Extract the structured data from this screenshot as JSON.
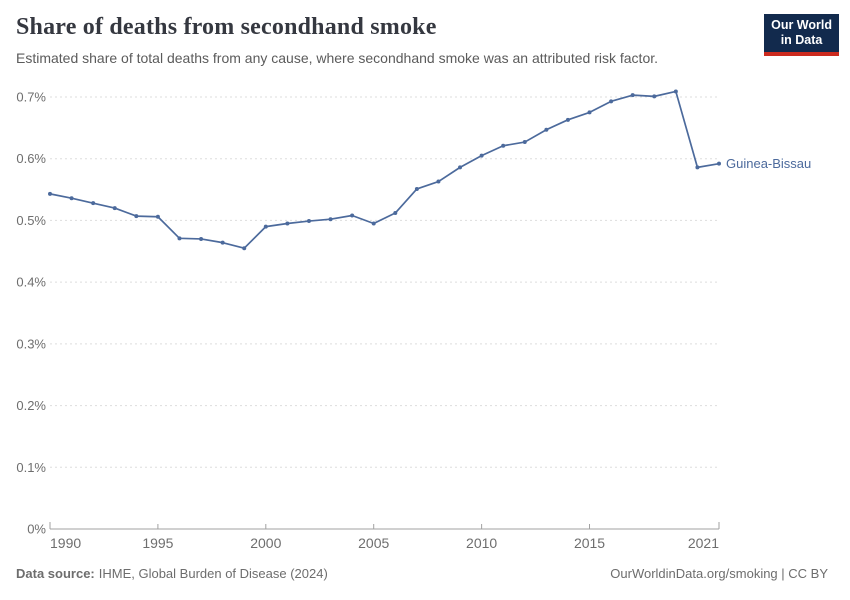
{
  "header": {
    "title": "Share of deaths from secondhand smoke",
    "subtitle": "Estimated share of total deaths from any cause, where secondhand smoke was an attributed risk factor.",
    "logo_line1": "Our World",
    "logo_line2": "in Data"
  },
  "chart_data": {
    "type": "line",
    "title": "Share of deaths from secondhand smoke",
    "xlabel": "",
    "ylabel": "",
    "xlim": [
      1990,
      2021
    ],
    "ylim": [
      0,
      0.7
    ],
    "grid": "horizontal-dashed",
    "legend_position": "end-of-line-label",
    "y_tick_format": "percent",
    "x": [
      1990,
      1991,
      1992,
      1993,
      1994,
      1995,
      1996,
      1997,
      1998,
      1999,
      2000,
      2001,
      2002,
      2003,
      2004,
      2005,
      2006,
      2007,
      2008,
      2009,
      2010,
      2011,
      2012,
      2013,
      2014,
      2015,
      2016,
      2017,
      2018,
      2019,
      2020,
      2021
    ],
    "series": [
      {
        "name": "Guinea-Bissau",
        "color": "#4c6a9c",
        "values": [
          0.543,
          0.536,
          0.528,
          0.52,
          0.507,
          0.506,
          0.471,
          0.47,
          0.464,
          0.455,
          0.49,
          0.495,
          0.499,
          0.502,
          0.508,
          0.495,
          0.512,
          0.551,
          0.563,
          0.586,
          0.605,
          0.621,
          0.627,
          0.647,
          0.663,
          0.675,
          0.693,
          0.703,
          0.701,
          0.709,
          0.586,
          0.592
        ]
      }
    ],
    "x_ticks": [
      {
        "value": 1990,
        "label": "1990",
        "align": "start",
        "edge": true
      },
      {
        "value": 1995,
        "label": "1995",
        "align": "middle",
        "edge": false
      },
      {
        "value": 2000,
        "label": "2000",
        "align": "middle",
        "edge": false
      },
      {
        "value": 2005,
        "label": "2005",
        "align": "middle",
        "edge": false
      },
      {
        "value": 2010,
        "label": "2010",
        "align": "middle",
        "edge": false
      },
      {
        "value": 2015,
        "label": "2015",
        "align": "middle",
        "edge": false
      },
      {
        "value": 2021,
        "label": "2021",
        "align": "end",
        "edge": true
      }
    ],
    "y_ticks": [
      {
        "value": 0,
        "label": "0%"
      },
      {
        "value": 0.1,
        "label": "0.1%"
      },
      {
        "value": 0.2,
        "label": "0.2%"
      },
      {
        "value": 0.3,
        "label": "0.3%"
      },
      {
        "value": 0.4,
        "label": "0.4%"
      },
      {
        "value": 0.5,
        "label": "0.5%"
      },
      {
        "value": 0.6,
        "label": "0.6%"
      },
      {
        "value": 0.7,
        "label": "0.7%"
      }
    ]
  },
  "footer": {
    "source_label": "Data source:",
    "source_text": "IHME, Global Burden of Disease (2024)",
    "credit": "OurWorldinData.org/smoking | CC BY"
  },
  "colors": {
    "line": "#4c6a9c",
    "grid": "#dddddd",
    "axis": "#a1a1a1",
    "label": "#6e6e6e",
    "title": "#353840",
    "subtitle": "#5b5b5b",
    "footer": "#6d6d6d",
    "logo-bg": "#122a4d",
    "logo-bar": "#cc2a1e"
  }
}
